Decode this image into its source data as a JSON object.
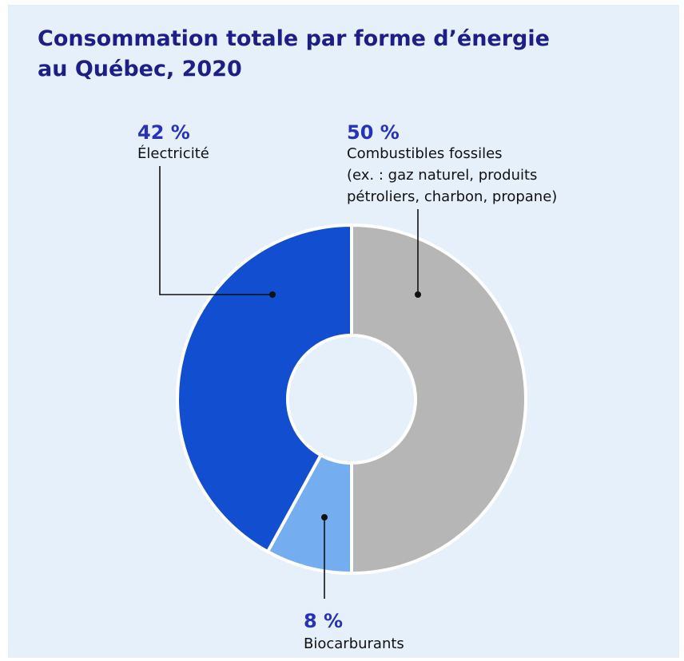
{
  "title_lines": [
    "Consommation totale par forme d’énergie",
    "au Québec, 2020"
  ],
  "colors": {
    "background": "#e6f0fb",
    "title": "#1c1f87",
    "percent": "#2632b8",
    "leader": "#111111"
  },
  "chart_data": {
    "type": "pie",
    "donut": true,
    "title": "Consommation totale par forme d’énergie au Québec, 2020",
    "slices": [
      {
        "label": "Combustibles fossiles",
        "detail": [
          "(ex. : gaz naturel, produits",
          "pétroliers, charbon, propane)"
        ],
        "value": 50,
        "value_label": "50 %",
        "color": "#b6b6b6"
      },
      {
        "label": "Biocarburants",
        "detail": [],
        "value": 8,
        "value_label": "8 %",
        "color": "#74aef0"
      },
      {
        "label": "Électricité",
        "detail": [],
        "value": 42,
        "value_label": "42 %",
        "color": "#124fd0"
      }
    ]
  }
}
